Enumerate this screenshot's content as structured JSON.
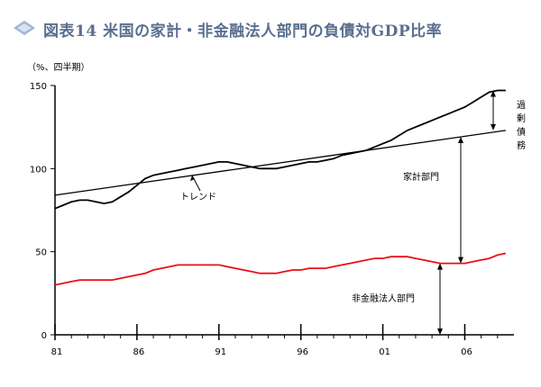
{
  "title": "図表14 米国の家計・非金融法人部門の負債対GDP比率",
  "chart_data": {
    "type": "line",
    "unit_label": "（%、四半期）",
    "ylim": [
      0,
      150
    ],
    "y_ticks": [
      0,
      50,
      100,
      150
    ],
    "x_tick_labels": [
      "81",
      "86",
      "91",
      "96",
      "01",
      "06"
    ],
    "x_tick_years": [
      1981,
      1986,
      1991,
      1996,
      2001,
      2006
    ],
    "xlim": [
      1981,
      2009
    ],
    "series": [
      {
        "name": "家計部門",
        "color": "#000000",
        "points": [
          [
            1981.0,
            76
          ],
          [
            1981.5,
            78
          ],
          [
            1982.0,
            80
          ],
          [
            1982.5,
            81
          ],
          [
            1983.0,
            81
          ],
          [
            1983.5,
            80
          ],
          [
            1984.0,
            79
          ],
          [
            1984.5,
            80
          ],
          [
            1985.0,
            83
          ],
          [
            1985.5,
            86
          ],
          [
            1986.0,
            90
          ],
          [
            1986.5,
            94
          ],
          [
            1987.0,
            96
          ],
          [
            1987.5,
            97
          ],
          [
            1988.0,
            98
          ],
          [
            1988.5,
            99
          ],
          [
            1989.0,
            100
          ],
          [
            1989.5,
            101
          ],
          [
            1990.0,
            102
          ],
          [
            1990.5,
            103
          ],
          [
            1991.0,
            104
          ],
          [
            1991.5,
            104
          ],
          [
            1992.0,
            103
          ],
          [
            1992.5,
            102
          ],
          [
            1993.0,
            101
          ],
          [
            1993.5,
            100
          ],
          [
            1994.0,
            100
          ],
          [
            1994.5,
            100
          ],
          [
            1995.0,
            101
          ],
          [
            1995.5,
            102
          ],
          [
            1996.0,
            103
          ],
          [
            1996.5,
            104
          ],
          [
            1997.0,
            104
          ],
          [
            1997.5,
            105
          ],
          [
            1998.0,
            106
          ],
          [
            1998.5,
            108
          ],
          [
            1999.0,
            109
          ],
          [
            1999.5,
            110
          ],
          [
            2000.0,
            111
          ],
          [
            2000.5,
            113
          ],
          [
            2001.0,
            115
          ],
          [
            2001.5,
            117
          ],
          [
            2002.0,
            120
          ],
          [
            2002.5,
            123
          ],
          [
            2003.0,
            125
          ],
          [
            2003.5,
            127
          ],
          [
            2004.0,
            129
          ],
          [
            2004.5,
            131
          ],
          [
            2005.0,
            133
          ],
          [
            2005.5,
            135
          ],
          [
            2006.0,
            137
          ],
          [
            2006.5,
            140
          ],
          [
            2007.0,
            143
          ],
          [
            2007.5,
            146
          ],
          [
            2008.0,
            147
          ],
          [
            2008.5,
            147
          ]
        ]
      },
      {
        "name": "トレンド",
        "color": "#000000",
        "points": [
          [
            1981.0,
            84
          ],
          [
            2008.5,
            123
          ]
        ]
      },
      {
        "name": "非金融法人部門",
        "color": "#e8101a",
        "points": [
          [
            1981.0,
            30
          ],
          [
            1981.5,
            31
          ],
          [
            1982.0,
            32
          ],
          [
            1982.5,
            33
          ],
          [
            1983.0,
            33
          ],
          [
            1983.5,
            33
          ],
          [
            1984.0,
            33
          ],
          [
            1984.5,
            33
          ],
          [
            1985.0,
            34
          ],
          [
            1985.5,
            35
          ],
          [
            1986.0,
            36
          ],
          [
            1986.5,
            37
          ],
          [
            1987.0,
            39
          ],
          [
            1987.5,
            40
          ],
          [
            1988.0,
            41
          ],
          [
            1988.5,
            42
          ],
          [
            1989.0,
            42
          ],
          [
            1989.5,
            42
          ],
          [
            1990.0,
            42
          ],
          [
            1990.5,
            42
          ],
          [
            1991.0,
            42
          ],
          [
            1991.5,
            41
          ],
          [
            1992.0,
            40
          ],
          [
            1992.5,
            39
          ],
          [
            1993.0,
            38
          ],
          [
            1993.5,
            37
          ],
          [
            1994.0,
            37
          ],
          [
            1994.5,
            37
          ],
          [
            1995.0,
            38
          ],
          [
            1995.5,
            39
          ],
          [
            1996.0,
            39
          ],
          [
            1996.5,
            40
          ],
          [
            1997.0,
            40
          ],
          [
            1997.5,
            40
          ],
          [
            1998.0,
            41
          ],
          [
            1998.5,
            42
          ],
          [
            1999.0,
            43
          ],
          [
            1999.5,
            44
          ],
          [
            2000.0,
            45
          ],
          [
            2000.5,
            46
          ],
          [
            2001.0,
            46
          ],
          [
            2001.5,
            47
          ],
          [
            2002.0,
            47
          ],
          [
            2002.5,
            47
          ],
          [
            2003.0,
            46
          ],
          [
            2003.5,
            45
          ],
          [
            2004.0,
            44
          ],
          [
            2004.5,
            43
          ],
          [
            2005.0,
            43
          ],
          [
            2005.5,
            43
          ],
          [
            2006.0,
            43
          ],
          [
            2006.5,
            44
          ],
          [
            2007.0,
            45
          ],
          [
            2007.5,
            46
          ],
          [
            2008.0,
            48
          ],
          [
            2008.5,
            49
          ]
        ]
      }
    ],
    "annotations": {
      "trend_label": "トレンド",
      "household_label": "家計部門",
      "corporate_label": "非金融法人部門",
      "excess_debt_label": [
        "過",
        "剰",
        "債",
        "務"
      ]
    }
  }
}
